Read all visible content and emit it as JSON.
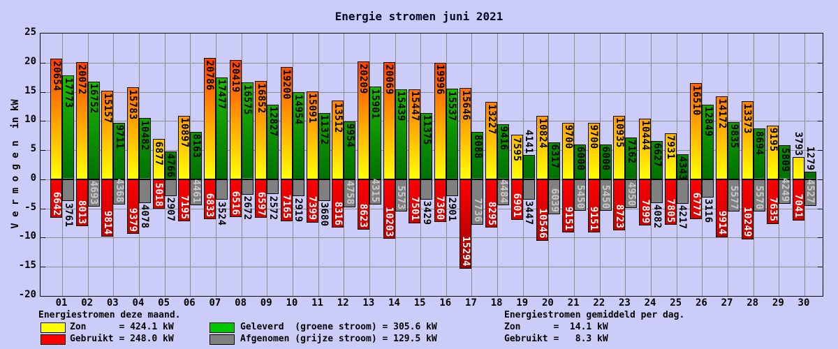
{
  "title": "Energie stromen juni 2021",
  "y_axis": {
    "label": "V e r m o g e n  in kW",
    "ticks": [
      25,
      20,
      15,
      10,
      5,
      0,
      -5,
      -10,
      -15,
      -20
    ]
  },
  "chart_data": {
    "type": "bar",
    "title": "Energie stromen juni 2021",
    "xlabel": "",
    "ylabel": "Vermogen in kW",
    "ylim": [
      -20,
      25
    ],
    "grid": true,
    "legend_position": "bottom",
    "values_unit": "W (axis shows kW, value/1000)",
    "categories": [
      "01",
      "02",
      "03",
      "04",
      "05",
      "06",
      "07",
      "08",
      "09",
      "10",
      "11",
      "12",
      "13",
      "14",
      "15",
      "16",
      "17",
      "18",
      "19",
      "20",
      "21",
      "22",
      "23",
      "24",
      "25",
      "26",
      "27",
      "28",
      "29",
      "30"
    ],
    "series": [
      {
        "name": "Zon",
        "direction": "positive",
        "values": [
          20654,
          20072,
          15157,
          15783,
          6877,
          10897,
          20786,
          20419,
          16852,
          19200,
          15091,
          13512,
          20209,
          20069,
          15447,
          19996,
          15646,
          13227,
          7595,
          10824,
          9700,
          9700,
          10935,
          10444,
          7931,
          16510,
          14172,
          13373,
          9195,
          3793
        ]
      },
      {
        "name": "Geleverd (groene stroom)",
        "direction": "positive",
        "values": [
          17773,
          16752,
          9711,
          10482,
          4766,
          8163,
          17477,
          16575,
          12827,
          14954,
          11372,
          9954,
          15901,
          15439,
          11375,
          15537,
          8088,
          9416,
          4141,
          6317,
          6000,
          6000,
          7162,
          6627,
          4343,
          12849,
          9835,
          8694,
          5809,
          1279
        ]
      },
      {
        "name": "Gebruikt",
        "direction": "negative",
        "values": [
          6642,
          8013,
          9814,
          9379,
          5018,
          7195,
          6833,
          6516,
          6597,
          7165,
          7399,
          8316,
          8623,
          10203,
          7501,
          7360,
          15294,
          8295,
          6901,
          10546,
          9151,
          9151,
          8723,
          7899,
          7805,
          6777,
          9914,
          10249,
          7635,
          7041
        ]
      },
      {
        "name": "Afgenomen (grijze stroom)",
        "direction": "negative",
        "values": [
          3761,
          4693,
          4368,
          4078,
          2907,
          4461,
          3524,
          2672,
          2572,
          2919,
          3680,
          4758,
          4315,
          5573,
          3429,
          2901,
          7736,
          4484,
          3447,
          6039,
          5450,
          5450,
          4950,
          4082,
          4217,
          3116,
          5577,
          5570,
          4249,
          4527
        ]
      }
    ],
    "totals": {
      "zon_kw": 424.1,
      "gebruikt_kw": 248.0,
      "geleverd_kw": 305.6,
      "afgenomen_kw": 129.5
    },
    "averages_per_day": {
      "zon_kw": 14.1,
      "gebruikt_kw": 8.3
    }
  },
  "legend": {
    "header": "Energiestromen deze maand.",
    "items": [
      {
        "swatch": "#ffff00",
        "label": "Zon      = 424.1 kW"
      },
      {
        "swatch": "#ff0000",
        "label": "Gebruikt = 248.0 kW"
      },
      {
        "swatch": "#00c800",
        "label": "Geleverd  (groene stroom) = 305.6 kW"
      },
      {
        "swatch": "#808080",
        "label": "Afgenomen (grijze stroom) = 129.5 kW"
      }
    ]
  },
  "summary": {
    "header": "Energiestromen gemiddeld per dag.",
    "rows": [
      "Zon      =  14.1 kW",
      "Gebruikt =   8.3 kW"
    ]
  },
  "palette": {
    "background": "#ccccf8",
    "grid": "#8c8c8c",
    "frame": "#000000",
    "zon_gradient_bottom": "#ffff00",
    "zon_gradient_top": "#ff0f00",
    "geleverd_gradient_bottom": "#007200",
    "geleverd_gradient_top": "#2edc00",
    "gebruikt_gradient_zero": "#ff0000",
    "gebruikt_gradient_deep": "#780000",
    "afgenomen": "#808080",
    "label_on_red": "#ffffff",
    "label_on_gray": "#c8c8c8",
    "label_default": "#000000"
  }
}
